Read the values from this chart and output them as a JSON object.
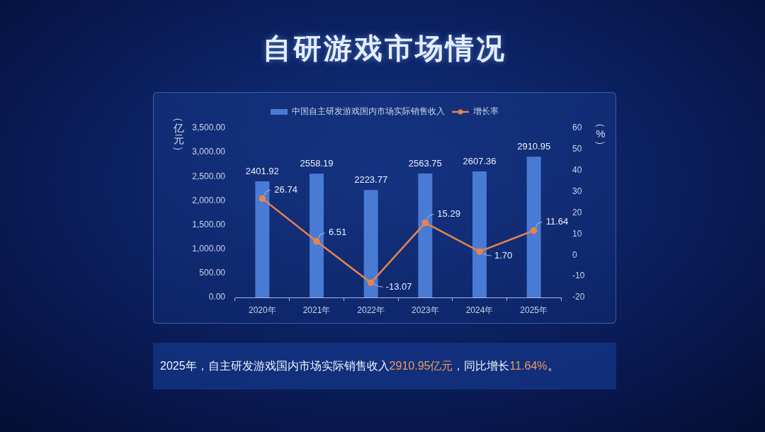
{
  "chart_data": {
    "type": "bar",
    "title": "自研游戏市场情况",
    "ylabel": "（亿元）",
    "y2label": "（%）",
    "categories": [
      "2020年",
      "2021年",
      "2022年",
      "2023年",
      "2024年",
      "2025年"
    ],
    "series": [
      {
        "name": "中国自主研发游戏国内市场实际销售收入",
        "color": "#4a7bd4",
        "values": [
          2401.92,
          2558.19,
          2223.77,
          2563.75,
          2607.36,
          2910.95
        ],
        "value_labels": [
          "2401.92",
          "2558.19",
          "2223.77",
          "2563.75",
          "2607.36",
          "2910.95"
        ]
      },
      {
        "name": "增长率",
        "type": "line",
        "axis": "y2",
        "color": "#e8844a",
        "values": [
          26.74,
          6.51,
          -13.07,
          15.29,
          1.7,
          11.64
        ],
        "value_labels": [
          "26.74",
          "6.51",
          "-13.07",
          "15.29",
          "1.70",
          "11.64"
        ]
      }
    ],
    "ylim": [
      0,
      3500
    ],
    "yticks": [
      {
        "value": 0,
        "label": "0.00"
      },
      {
        "value": 500,
        "label": "500.00"
      },
      {
        "value": 1000,
        "label": "1,000.00"
      },
      {
        "value": 1500,
        "label": "1,500.00"
      },
      {
        "value": 2000,
        "label": "2,000.00"
      },
      {
        "value": 2500,
        "label": "2,500.00"
      },
      {
        "value": 3000,
        "label": "3,000.00"
      },
      {
        "value": 3500,
        "label": "3,500.00"
      }
    ],
    "y2lim": [
      -20,
      60
    ],
    "y2ticks": [
      -20,
      -10,
      0,
      10,
      20,
      30,
      40,
      50,
      60
    ],
    "grid": false,
    "legend": "top",
    "marker": "circle",
    "line_style": "solid",
    "annotations": [
      "2025年，自主研发游戏国内市场实际销售收入2910.95亿元，同比增长11.64%。"
    ]
  }
}
